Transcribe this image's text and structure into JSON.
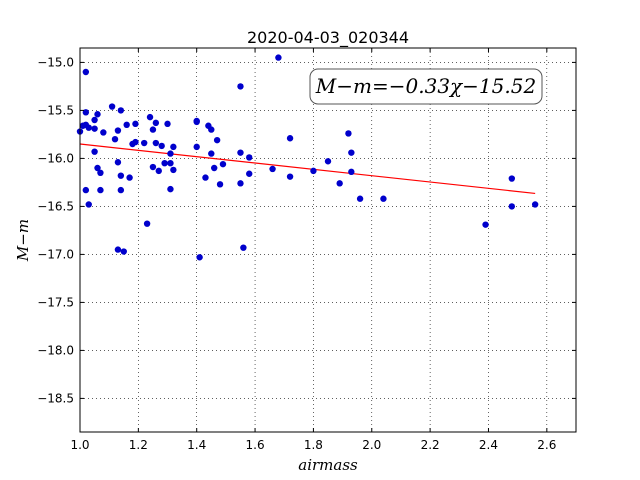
{
  "chart_data": {
    "type": "scatter",
    "title": "2020-04-03_020344",
    "xlabel": "airmass",
    "ylabel": "M−m",
    "xlim": [
      1.0,
      2.7
    ],
    "ylim": [
      -18.85,
      -14.85
    ],
    "x_ticks": [
      "1.0",
      "1.2",
      "1.4",
      "1.6",
      "1.8",
      "2.0",
      "2.2",
      "2.4",
      "2.6"
    ],
    "y_ticks": [
      "−15.0",
      "−15.5",
      "−16.0",
      "−16.5",
      "−17.0",
      "−17.5",
      "−18.0",
      "−18.5"
    ],
    "grid": true,
    "annotation": "M−m=−0.33χ−15.52",
    "colors": {
      "points": "#0000cc",
      "fit_line": "#ff0000"
    },
    "fit": {
      "slope": -0.33,
      "intercept": -15.52,
      "x_range": [
        1.0,
        2.56
      ]
    },
    "points": [
      [
        1.0,
        -15.72
      ],
      [
        1.01,
        -15.66
      ],
      [
        1.02,
        -15.1
      ],
      [
        1.02,
        -15.52
      ],
      [
        1.02,
        -15.65
      ],
      [
        1.03,
        -15.68
      ],
      [
        1.02,
        -16.33
      ],
      [
        1.03,
        -16.48
      ],
      [
        1.05,
        -15.69
      ],
      [
        1.05,
        -15.6
      ],
      [
        1.06,
        -15.54
      ],
      [
        1.05,
        -15.93
      ],
      [
        1.06,
        -16.1
      ],
      [
        1.07,
        -16.15
      ],
      [
        1.07,
        -16.33
      ],
      [
        1.08,
        -15.73
      ],
      [
        1.11,
        -15.46
      ],
      [
        1.12,
        -15.8
      ],
      [
        1.13,
        -15.71
      ],
      [
        1.13,
        -16.04
      ],
      [
        1.14,
        -15.5
      ],
      [
        1.14,
        -16.18
      ],
      [
        1.14,
        -16.33
      ],
      [
        1.13,
        -16.95
      ],
      [
        1.15,
        -16.97
      ],
      [
        1.16,
        -15.65
      ],
      [
        1.17,
        -16.2
      ],
      [
        1.18,
        -15.85
      ],
      [
        1.19,
        -15.64
      ],
      [
        1.19,
        -15.83
      ],
      [
        1.22,
        -15.84
      ],
      [
        1.23,
        -16.68
      ],
      [
        1.24,
        -15.57
      ],
      [
        1.25,
        -15.7
      ],
      [
        1.26,
        -15.63
      ],
      [
        1.25,
        -16.09
      ],
      [
        1.26,
        -15.84
      ],
      [
        1.27,
        -16.13
      ],
      [
        1.28,
        -15.87
      ],
      [
        1.29,
        -16.05
      ],
      [
        1.3,
        -15.64
      ],
      [
        1.31,
        -16.05
      ],
      [
        1.31,
        -16.32
      ],
      [
        1.31,
        -15.95
      ],
      [
        1.32,
        -16.12
      ],
      [
        1.32,
        -15.88
      ],
      [
        1.4,
        -15.61
      ],
      [
        1.4,
        -15.62
      ],
      [
        1.4,
        -15.88
      ],
      [
        1.41,
        -17.03
      ],
      [
        1.43,
        -16.2
      ],
      [
        1.44,
        -15.66
      ],
      [
        1.45,
        -15.95
      ],
      [
        1.45,
        -15.7
      ],
      [
        1.46,
        -16.1
      ],
      [
        1.47,
        -15.81
      ],
      [
        1.48,
        -16.27
      ],
      [
        1.49,
        -16.06
      ],
      [
        1.55,
        -15.25
      ],
      [
        1.55,
        -15.94
      ],
      [
        1.55,
        -16.26
      ],
      [
        1.56,
        -16.93
      ],
      [
        1.58,
        -15.99
      ],
      [
        1.58,
        -16.16
      ],
      [
        1.66,
        -16.11
      ],
      [
        1.68,
        -14.95
      ],
      [
        1.72,
        -16.19
      ],
      [
        1.72,
        -15.79
      ],
      [
        1.8,
        -16.13
      ],
      [
        1.85,
        -16.03
      ],
      [
        1.89,
        -16.26
      ],
      [
        1.92,
        -15.74
      ],
      [
        1.93,
        -15.94
      ],
      [
        1.93,
        -16.14
      ],
      [
        1.96,
        -16.42
      ],
      [
        2.04,
        -16.42
      ],
      [
        2.39,
        -16.69
      ],
      [
        2.48,
        -16.21
      ],
      [
        2.48,
        -16.5
      ],
      [
        2.56,
        -16.48
      ]
    ]
  }
}
